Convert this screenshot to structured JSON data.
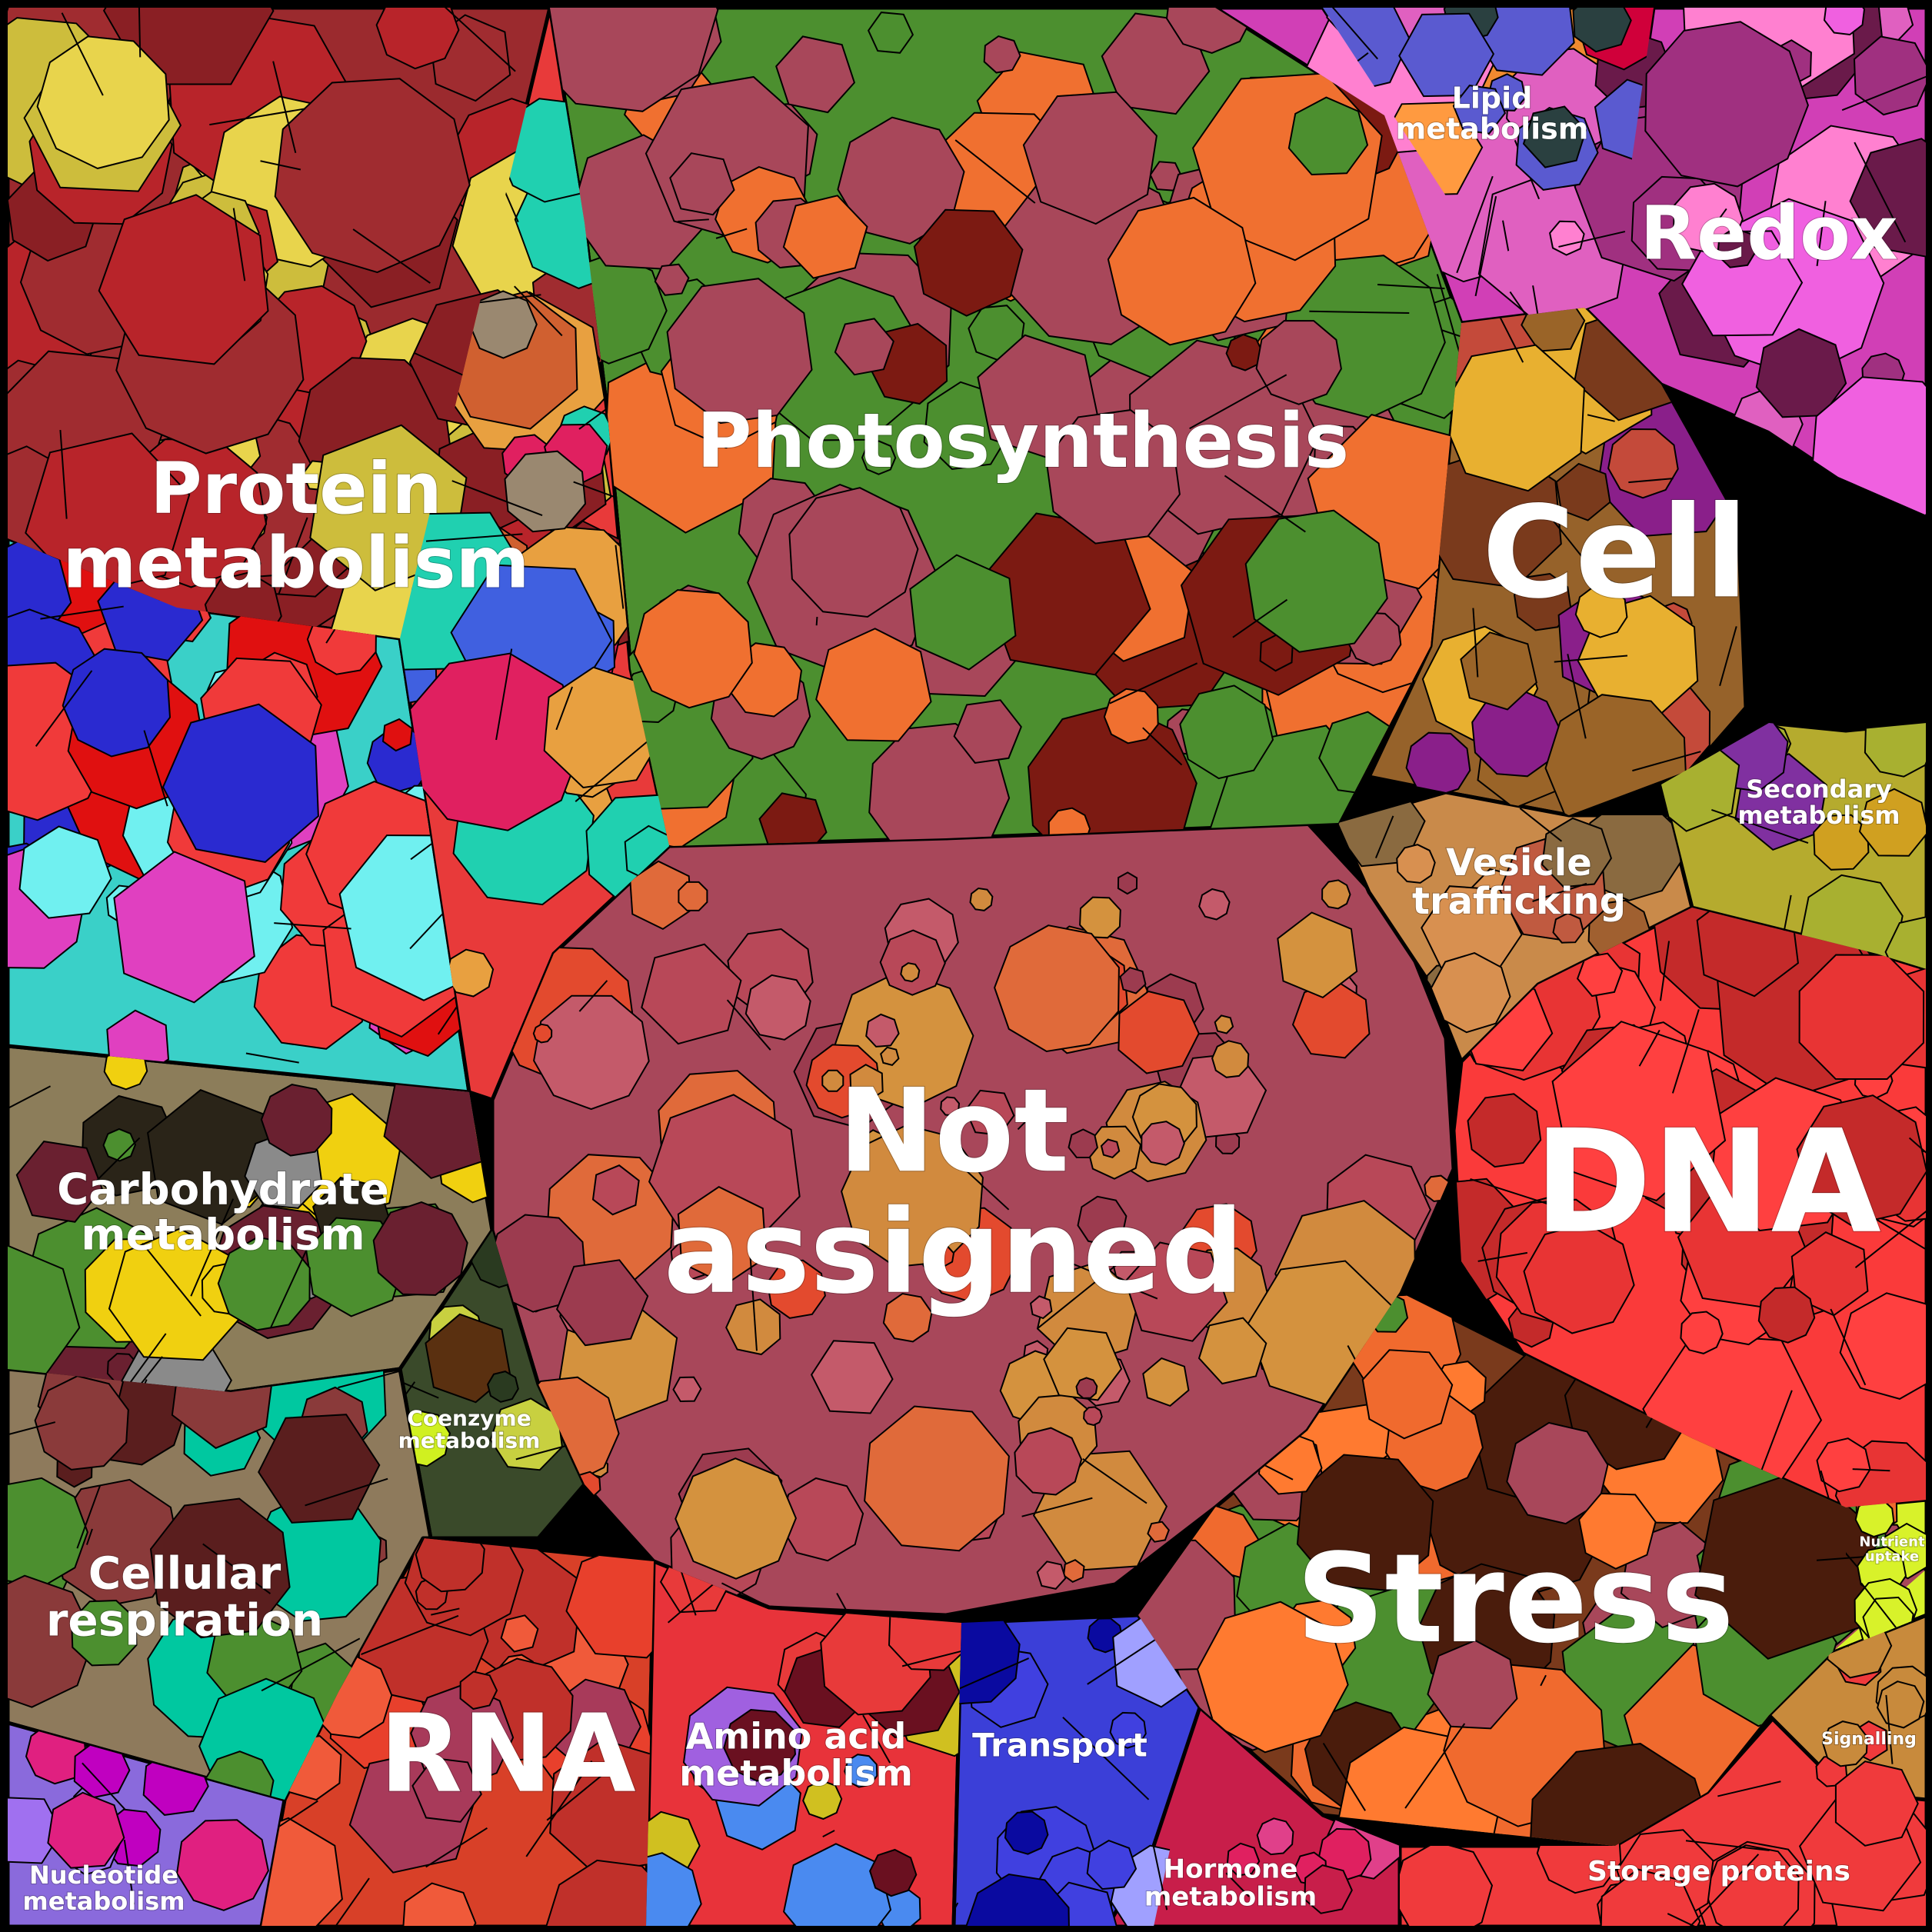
{
  "treemap": {
    "categories": [
      {
        "key": "not_assigned",
        "lines": [
          "Not",
          "assigned"
        ],
        "color": "#a8475a"
      },
      {
        "key": "photosynthesis",
        "lines": [
          "Photosynthesis"
        ],
        "color": "#4c8f2f"
      },
      {
        "key": "protein",
        "lines": [
          "Protein",
          "metabolism"
        ],
        "color": "#9b2a2e"
      },
      {
        "key": "dna",
        "lines": [
          "DNA"
        ],
        "color": "#fa3a3a"
      },
      {
        "key": "stress",
        "lines": [
          "Stress"
        ],
        "color": "#7a3a1c"
      },
      {
        "key": "cell",
        "lines": [
          "Cell"
        ],
        "color": "#96622a"
      },
      {
        "key": "redox",
        "lines": [
          "Redox"
        ],
        "color": "#d13fb6"
      },
      {
        "key": "rna",
        "lines": [
          "RNA"
        ],
        "color": "#d84028"
      },
      {
        "key": "lipid",
        "lines": [
          "Lipid",
          "metabolism"
        ],
        "color": "#f08a30"
      },
      {
        "key": "vesicle",
        "lines": [
          "Vesicle",
          "trafficking"
        ],
        "color": "#c98a4a"
      },
      {
        "key": "secondary",
        "lines": [
          "Secondary",
          "metabolism"
        ],
        "color": "#b5ab2e"
      },
      {
        "key": "carbohydrate",
        "lines": [
          "Carbohydrate",
          "metabolism"
        ],
        "color": "#8c7d5a"
      },
      {
        "key": "coenzyme",
        "lines": [
          "Coenzyme",
          "metabolism"
        ],
        "color": "#3a4a2a"
      },
      {
        "key": "cellular_resp",
        "lines": [
          "Cellular",
          "respiration"
        ],
        "color": "#8e7a5c"
      },
      {
        "key": "amino_acid",
        "lines": [
          "Amino acid",
          "metabolism"
        ],
        "color": "#e8333a"
      },
      {
        "key": "transport",
        "lines": [
          "Transport"
        ],
        "color": "#3b3fd8"
      },
      {
        "key": "hormone",
        "lines": [
          "Hormone",
          "metabolism"
        ],
        "color": "#c81e4a"
      },
      {
        "key": "storage",
        "lines": [
          "Storage proteins"
        ],
        "color": "#f03a3c"
      },
      {
        "key": "nutrient",
        "lines": [
          "Nutrient",
          "uptake"
        ],
        "color": "#d8f22a"
      },
      {
        "key": "signalling",
        "lines": [
          "Signalling"
        ],
        "color": "#c88a3c"
      },
      {
        "key": "nucleotide",
        "lines": [
          "Nucleotide",
          "metabolism"
        ],
        "color": "#8a6adc"
      },
      {
        "key": "misc_left",
        "lines": [],
        "color": "#3ad0c8"
      },
      {
        "key": "misc_upper",
        "lines": [],
        "color": "#e83a3a"
      }
    ]
  }
}
